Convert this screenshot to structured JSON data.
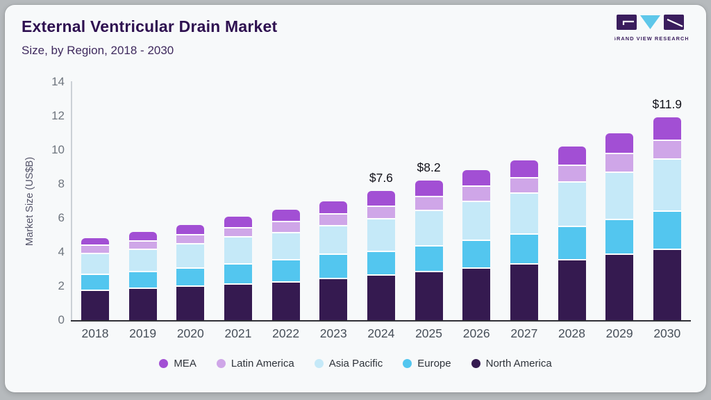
{
  "header": {
    "title": "External Ventricular Drain Market",
    "subtitle": "Size, by Region, 2018 - 2030"
  },
  "logo": {
    "text": "GRAND VIEW RESEARCH",
    "dark_color": "#3a1d5d",
    "accent_color": "#5ec7ea"
  },
  "chart_data": {
    "type": "bar",
    "stacked": true,
    "title": "External Ventricular Drain Market Size, by Region, 2018 - 2030",
    "xlabel": "",
    "ylabel": "Market Size (US$B)",
    "ylim": [
      0,
      14
    ],
    "ytick_step": 2,
    "grid": false,
    "legend_position": "bottom",
    "categories": [
      "2018",
      "2019",
      "2020",
      "2021",
      "2022",
      "2023",
      "2024",
      "2025",
      "2026",
      "2027",
      "2028",
      "2029",
      "2030"
    ],
    "series": [
      {
        "name": "North America",
        "color": "#351a50",
        "values": [
          1.8,
          1.9,
          2.05,
          2.15,
          2.3,
          2.5,
          2.7,
          2.9,
          3.1,
          3.35,
          3.6,
          3.9,
          4.2
        ]
      },
      {
        "name": "Europe",
        "color": "#53c6ef",
        "values": [
          0.95,
          1.0,
          1.05,
          1.2,
          1.3,
          1.4,
          1.4,
          1.5,
          1.65,
          1.75,
          1.95,
          2.05,
          2.25
        ]
      },
      {
        "name": "Asia Pacific",
        "color": "#c5e9f8",
        "values": [
          1.2,
          1.3,
          1.45,
          1.6,
          1.6,
          1.7,
          1.9,
          2.1,
          2.25,
          2.4,
          2.6,
          2.8,
          3.05
        ]
      },
      {
        "name": "Latin America",
        "color": "#cfa6e8",
        "values": [
          0.5,
          0.5,
          0.5,
          0.5,
          0.65,
          0.7,
          0.75,
          0.8,
          0.9,
          0.9,
          1.0,
          1.1,
          1.1
        ]
      },
      {
        "name": "MEA",
        "color": "#a24fd4",
        "values": [
          0.35,
          0.5,
          0.55,
          0.65,
          0.65,
          0.7,
          0.85,
          0.9,
          0.9,
          1.0,
          1.05,
          1.15,
          1.3
        ]
      }
    ],
    "totals": [
      4.8,
      5.2,
      5.6,
      6.1,
      6.5,
      7.0,
      7.6,
      8.2,
      8.8,
      9.4,
      10.2,
      11.0,
      11.9
    ],
    "value_labels": {
      "2024": "$7.6",
      "2025": "$8.2",
      "2030": "$11.9"
    },
    "legend": [
      {
        "label": "MEA",
        "color": "#a24fd4"
      },
      {
        "label": "Latin America",
        "color": "#cfa6e8"
      },
      {
        "label": "Asia Pacific",
        "color": "#c5e9f8"
      },
      {
        "label": "Europe",
        "color": "#53c6ef"
      },
      {
        "label": "North America",
        "color": "#351a50"
      }
    ]
  }
}
